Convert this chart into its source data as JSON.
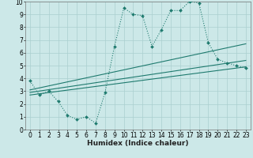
{
  "xlabel": "Humidex (Indice chaleur)",
  "bg_color": "#cce8e8",
  "grid_color": "#aacfcf",
  "line_color": "#1e7a6e",
  "xlim": [
    -0.5,
    23.5
  ],
  "ylim": [
    0,
    10
  ],
  "xticks": [
    0,
    1,
    2,
    3,
    4,
    5,
    6,
    7,
    8,
    9,
    10,
    11,
    12,
    13,
    14,
    15,
    16,
    17,
    18,
    19,
    20,
    21,
    22,
    23
  ],
  "yticks": [
    0,
    1,
    2,
    3,
    4,
    5,
    6,
    7,
    8,
    9,
    10
  ],
  "line1_x": [
    0,
    1,
    2,
    3,
    4,
    5,
    6,
    7,
    8,
    9,
    10,
    11,
    12,
    13,
    14,
    15,
    16,
    17,
    18,
    19,
    20,
    21,
    22,
    23
  ],
  "line1_y": [
    3.8,
    2.7,
    3.0,
    2.2,
    1.1,
    0.8,
    1.0,
    0.5,
    2.9,
    6.5,
    9.5,
    9.0,
    8.9,
    6.5,
    7.8,
    9.3,
    9.3,
    10.0,
    9.9,
    6.8,
    5.5,
    5.2,
    5.0,
    4.8
  ],
  "line2_x": [
    0,
    23
  ],
  "line2_y": [
    3.1,
    6.7
  ],
  "line3_x": [
    0,
    23
  ],
  "line3_y": [
    2.9,
    5.4
  ],
  "line4_x": [
    0,
    23
  ],
  "line4_y": [
    2.7,
    4.9
  ],
  "tick_fontsize": 5.5,
  "xlabel_fontsize": 6.5,
  "marker_size": 2.0,
  "line_width": 0.8
}
